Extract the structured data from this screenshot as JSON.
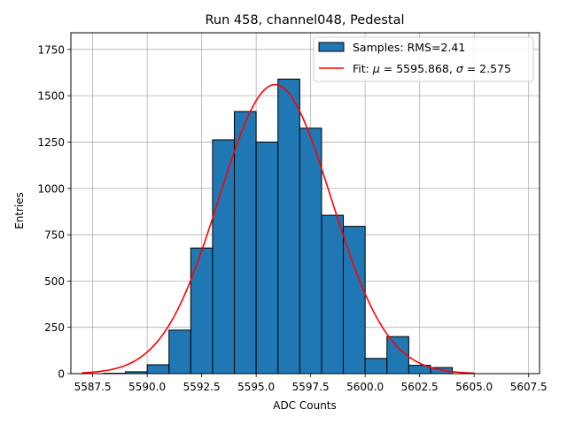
{
  "chart_data": {
    "type": "histogram",
    "title": "Run 458, channel048, Pedestal",
    "xlabel": "ADC Counts",
    "ylabel": "Entries",
    "xlim": [
      5586.5,
      5608.0
    ],
    "ylim": [
      0,
      1840
    ],
    "grid": true,
    "xticks": [
      5587.5,
      5590.0,
      5592.5,
      5595.0,
      5597.5,
      5600.0,
      5602.5,
      5605.0,
      5607.5
    ],
    "xtick_labels": [
      "5587.5",
      "5590.0",
      "5592.5",
      "5595.0",
      "5597.5",
      "5600.0",
      "5602.5",
      "5605.0",
      "5607.5"
    ],
    "yticks": [
      0,
      250,
      500,
      750,
      1000,
      1250,
      1500,
      1750
    ],
    "ytick_labels": [
      "0",
      "250",
      "500",
      "750",
      "1000",
      "1250",
      "1500",
      "1750"
    ],
    "bins": [
      {
        "x0": 5587.0,
        "x1": 5588.0,
        "count": 0
      },
      {
        "x0": 5588.0,
        "x1": 5589.0,
        "count": 2
      },
      {
        "x0": 5589.0,
        "x1": 5590.0,
        "count": 10
      },
      {
        "x0": 5590.0,
        "x1": 5591.0,
        "count": 48
      },
      {
        "x0": 5591.0,
        "x1": 5592.0,
        "count": 235
      },
      {
        "x0": 5592.0,
        "x1": 5593.0,
        "count": 678
      },
      {
        "x0": 5593.0,
        "x1": 5594.0,
        "count": 1262
      },
      {
        "x0": 5594.0,
        "x1": 5595.0,
        "count": 1415
      },
      {
        "x0": 5595.0,
        "x1": 5596.0,
        "count": 1250
      },
      {
        "x0": 5596.0,
        "x1": 5597.0,
        "count": 1590
      },
      {
        "x0": 5597.0,
        "x1": 5598.0,
        "count": 1325
      },
      {
        "x0": 5598.0,
        "x1": 5599.0,
        "count": 855
      },
      {
        "x0": 5599.0,
        "x1": 5600.0,
        "count": 795
      },
      {
        "x0": 5600.0,
        "x1": 5601.0,
        "count": 82
      },
      {
        "x0": 5601.0,
        "x1": 5602.0,
        "count": 200
      },
      {
        "x0": 5602.0,
        "x1": 5603.0,
        "count": 45
      },
      {
        "x0": 5603.0,
        "x1": 5604.0,
        "count": 33
      },
      {
        "x0": 5604.0,
        "x1": 5605.0,
        "count": 0
      },
      {
        "x0": 5605.0,
        "x1": 5606.0,
        "count": 0
      },
      {
        "x0": 5606.0,
        "x1": 5607.0,
        "count": 0
      }
    ],
    "fit": {
      "mu": 5595.868,
      "sigma": 2.575,
      "amplitude": 1560,
      "x_range": [
        5587.0,
        5605.0
      ]
    },
    "legend": {
      "placement": "top-right",
      "samples_label": "Samples: RMS=2.41",
      "fit_prefix": "Fit: ",
      "mu_symbol": "μ",
      "mu_text": " = 5595.868, ",
      "sigma_symbol": "σ",
      "sigma_text": " = 2.575"
    },
    "colors": {
      "bar_fill": "#1f77b4",
      "bar_edge": "#000000",
      "fit_line": "#ff0000",
      "grid": "#b0b0b0"
    }
  }
}
